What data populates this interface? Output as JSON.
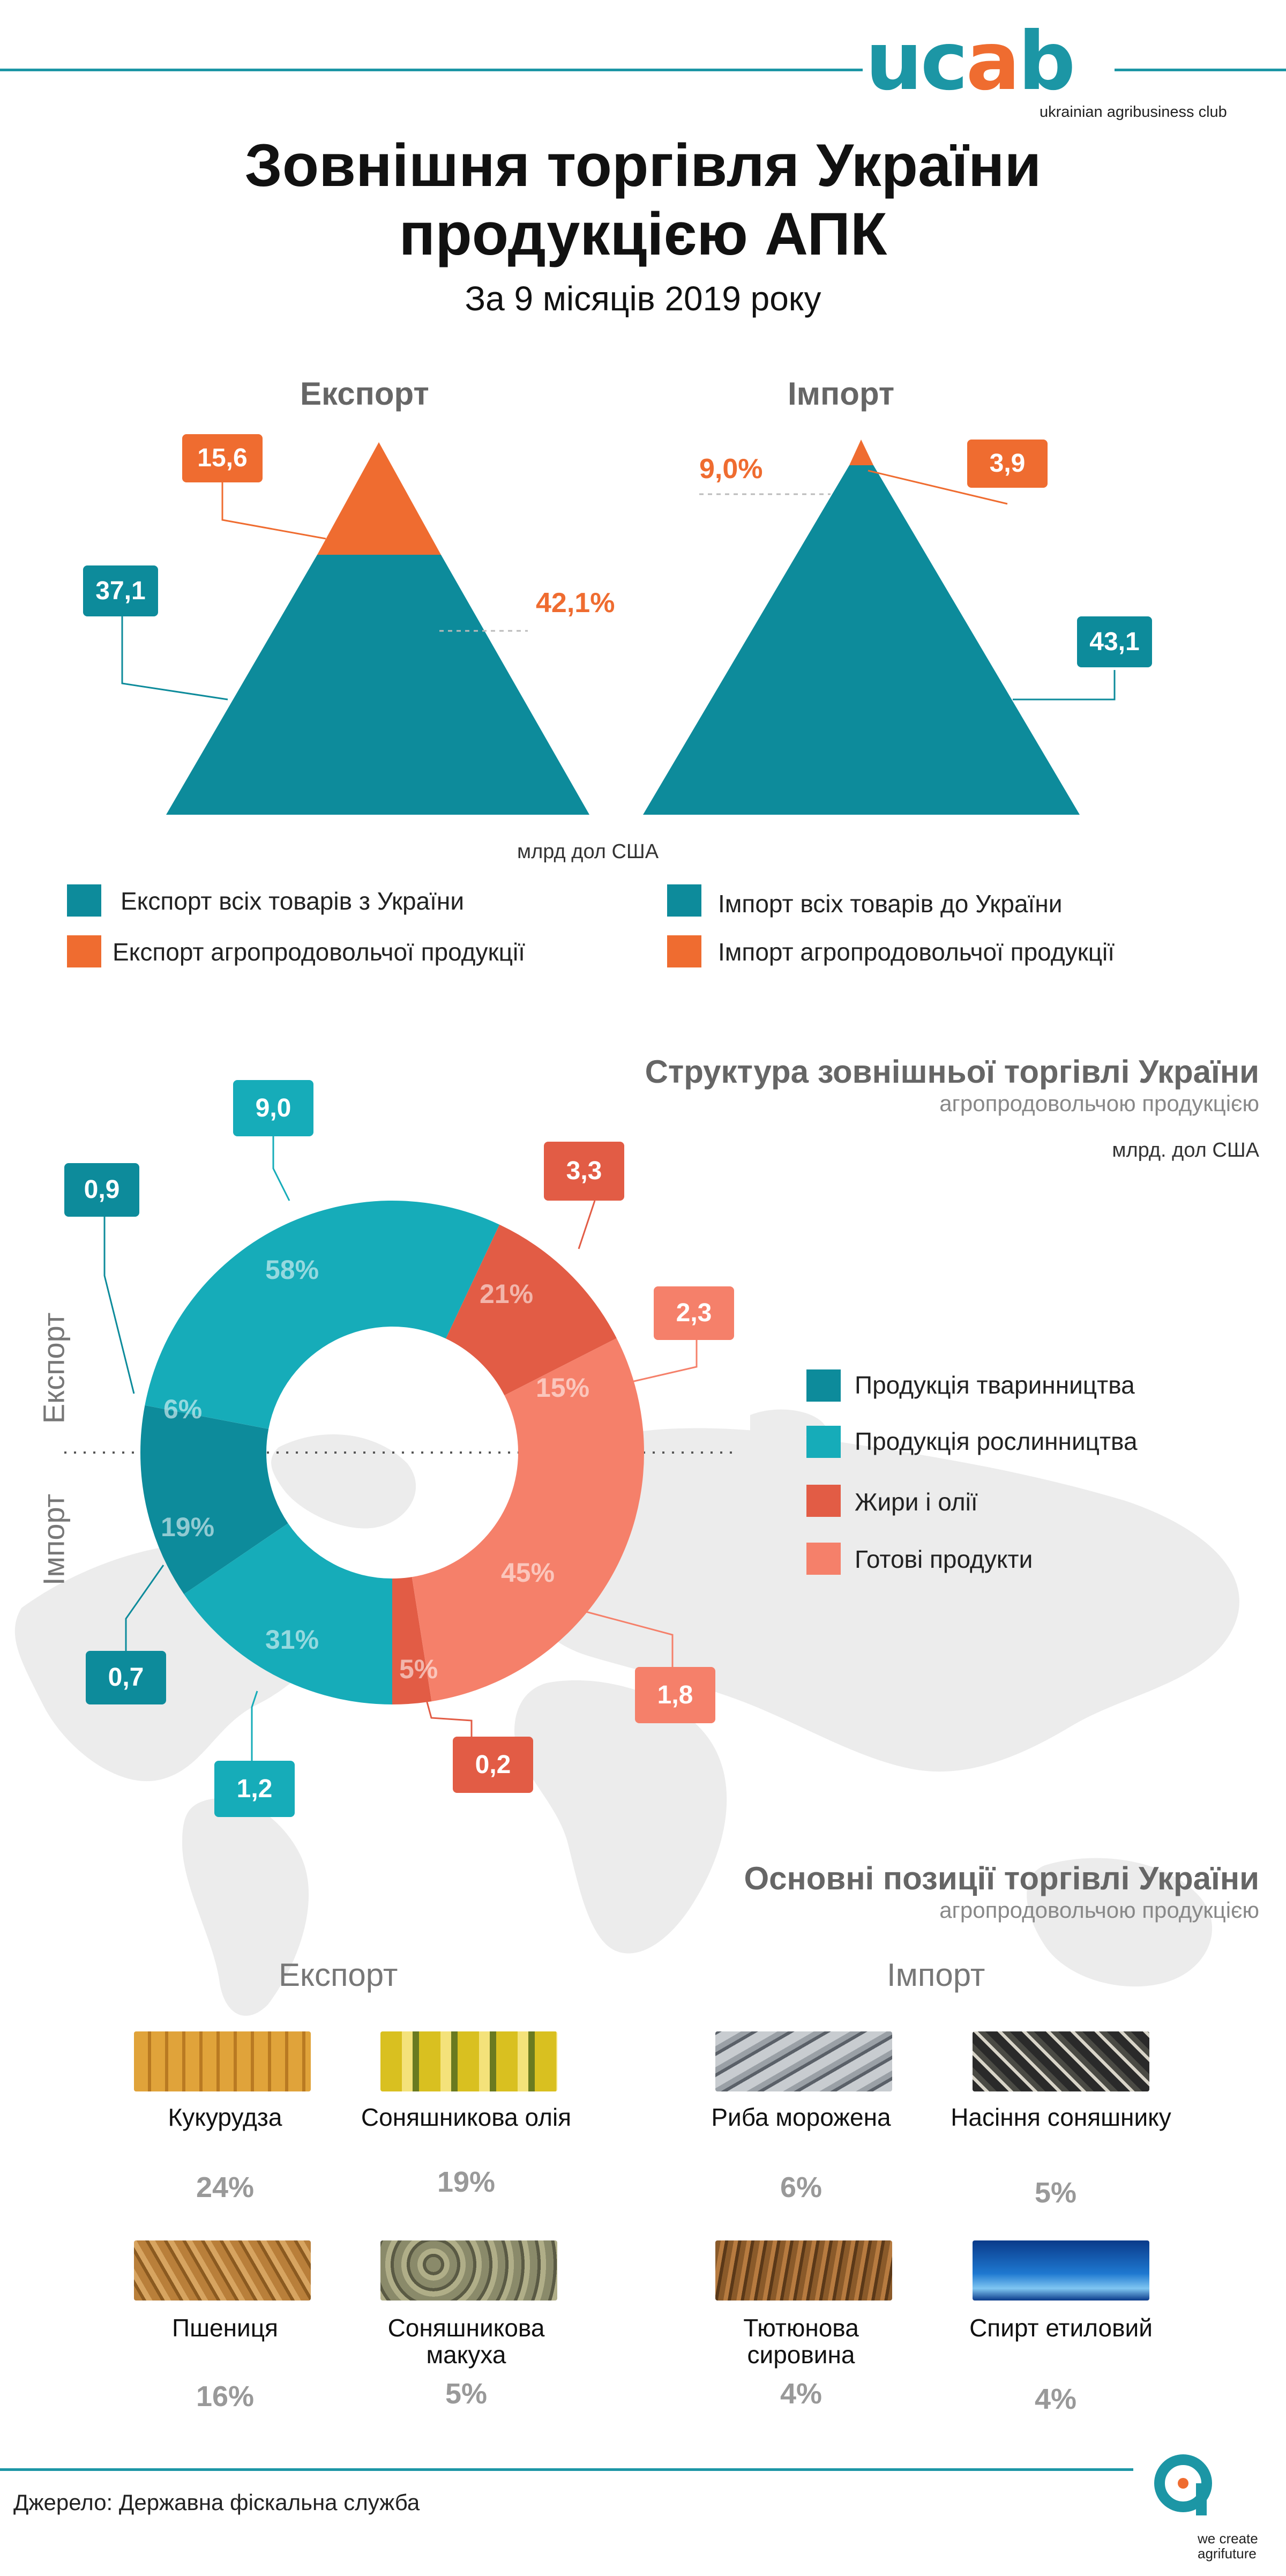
{
  "brand": {
    "logo_text_a": "uc",
    "logo_text_b": "a",
    "logo_text_c": "b",
    "tagline": "ukrainian agribusiness club"
  },
  "title_line1": "Зовнішня торгівля України",
  "title_line2": "продукцією АПК",
  "subtitle": "За 9 місяців  2019 року",
  "export_head": "Експорт",
  "import_head": "Імпорт",
  "export": {
    "total": "37,1",
    "agro": "15,6",
    "share": "42,1%"
  },
  "import": {
    "total": "43,1",
    "agro": "3,9",
    "share": "9,0%"
  },
  "unit_pyramid": "млрд дол США",
  "legend_top": [
    {
      "label": "Експорт всіх товарів з України",
      "color": "#0d8b9b"
    },
    {
      "label": "Експорт агропродовольчої продукції",
      "color": "#ef6c30"
    },
    {
      "label": "Імпорт всіх товарів до України",
      "color": "#0d8b9b"
    },
    {
      "label": "Імпорт агропродовольчої продукції",
      "color": "#ef6c30"
    }
  ],
  "structure": {
    "title": "Структура зовнішньої торгівлі України",
    "subtitle": "агропродовольчою продукцією",
    "unit": "млрд. дол США",
    "export_label": "Експорт",
    "import_label": "Імпорт",
    "legend": [
      {
        "label": "Продукція тваринництва",
        "color": "#0d8b9b"
      },
      {
        "label": "Продукція рослинництва",
        "color": "#16acb9"
      },
      {
        "label": "Жири і олії",
        "color": "#e25c45"
      },
      {
        "label": "Готові продукти",
        "color": "#f5806a"
      }
    ]
  },
  "chart_data": [
    {
      "type": "bar",
      "title": "Експорт",
      "categories": [
        "Експорт всіх товарів з України",
        "Експорт агропродовольчої продукції"
      ],
      "values": [
        37.1,
        15.6
      ],
      "share_label": "42,1%",
      "unit": "млрд дол США"
    },
    {
      "type": "bar",
      "title": "Імпорт",
      "categories": [
        "Імпорт всіх товарів до України",
        "Імпорт агропродовольчої продукції"
      ],
      "values": [
        43.1,
        3.9
      ],
      "share_label": "9,0%",
      "unit": "млрд дол США"
    },
    {
      "type": "pie",
      "title": "Експорт",
      "categories": [
        "Продукція тваринництва",
        "Продукція рослинництва",
        "Жири і олії",
        "Готові продукти"
      ],
      "values": [
        0.9,
        9.0,
        3.3,
        2.3
      ],
      "value_labels": [
        "0,9",
        "9,0",
        "3,3",
        "2,3"
      ],
      "percent": [
        6,
        58,
        21,
        15
      ],
      "percent_labels": [
        "6%",
        "58%",
        "21%",
        "15%"
      ],
      "colors": [
        "#0d8b9b",
        "#16acb9",
        "#e25c45",
        "#f5806a"
      ]
    },
    {
      "type": "pie",
      "title": "Імпорт",
      "categories": [
        "Продукція тваринництва",
        "Продукція рослинництва",
        "Жири і олії",
        "Готові продукти"
      ],
      "values": [
        0.7,
        1.2,
        0.2,
        1.8
      ],
      "value_labels": [
        "0,7",
        "1,2",
        "0,2",
        "1,8"
      ],
      "percent": [
        19,
        31,
        5,
        45
      ],
      "percent_labels": [
        "19%",
        "31%",
        "5%",
        "45%"
      ],
      "colors": [
        "#0d8b9b",
        "#16acb9",
        "#e25c45",
        "#f5806a"
      ]
    }
  ],
  "positions": {
    "title": "Основні позиції торгівлі України",
    "subtitle": "агропродовольчою продукцією",
    "export_head": "Експорт",
    "import_head": "Імпорт",
    "export_items": [
      {
        "name": "Кукурудза",
        "pct": "24%"
      },
      {
        "name": "Соняшникова олія",
        "pct": "19%"
      },
      {
        "name": "Пшениця",
        "pct": "16%"
      },
      {
        "name": "Соняшникова макуха",
        "pct": "5%"
      }
    ],
    "import_items": [
      {
        "name": "Риба морожена",
        "pct": "6%"
      },
      {
        "name": "Насіння соняшнику",
        "pct": "5%"
      },
      {
        "name": "Тютюнова сировина",
        "pct": "4%"
      },
      {
        "name": "Спирт етиловий",
        "pct": "4%"
      }
    ]
  },
  "source": "Джерело: Державна фіскальна служба",
  "footer_tagline_1": "we create",
  "footer_tagline_2": "agrifuture"
}
